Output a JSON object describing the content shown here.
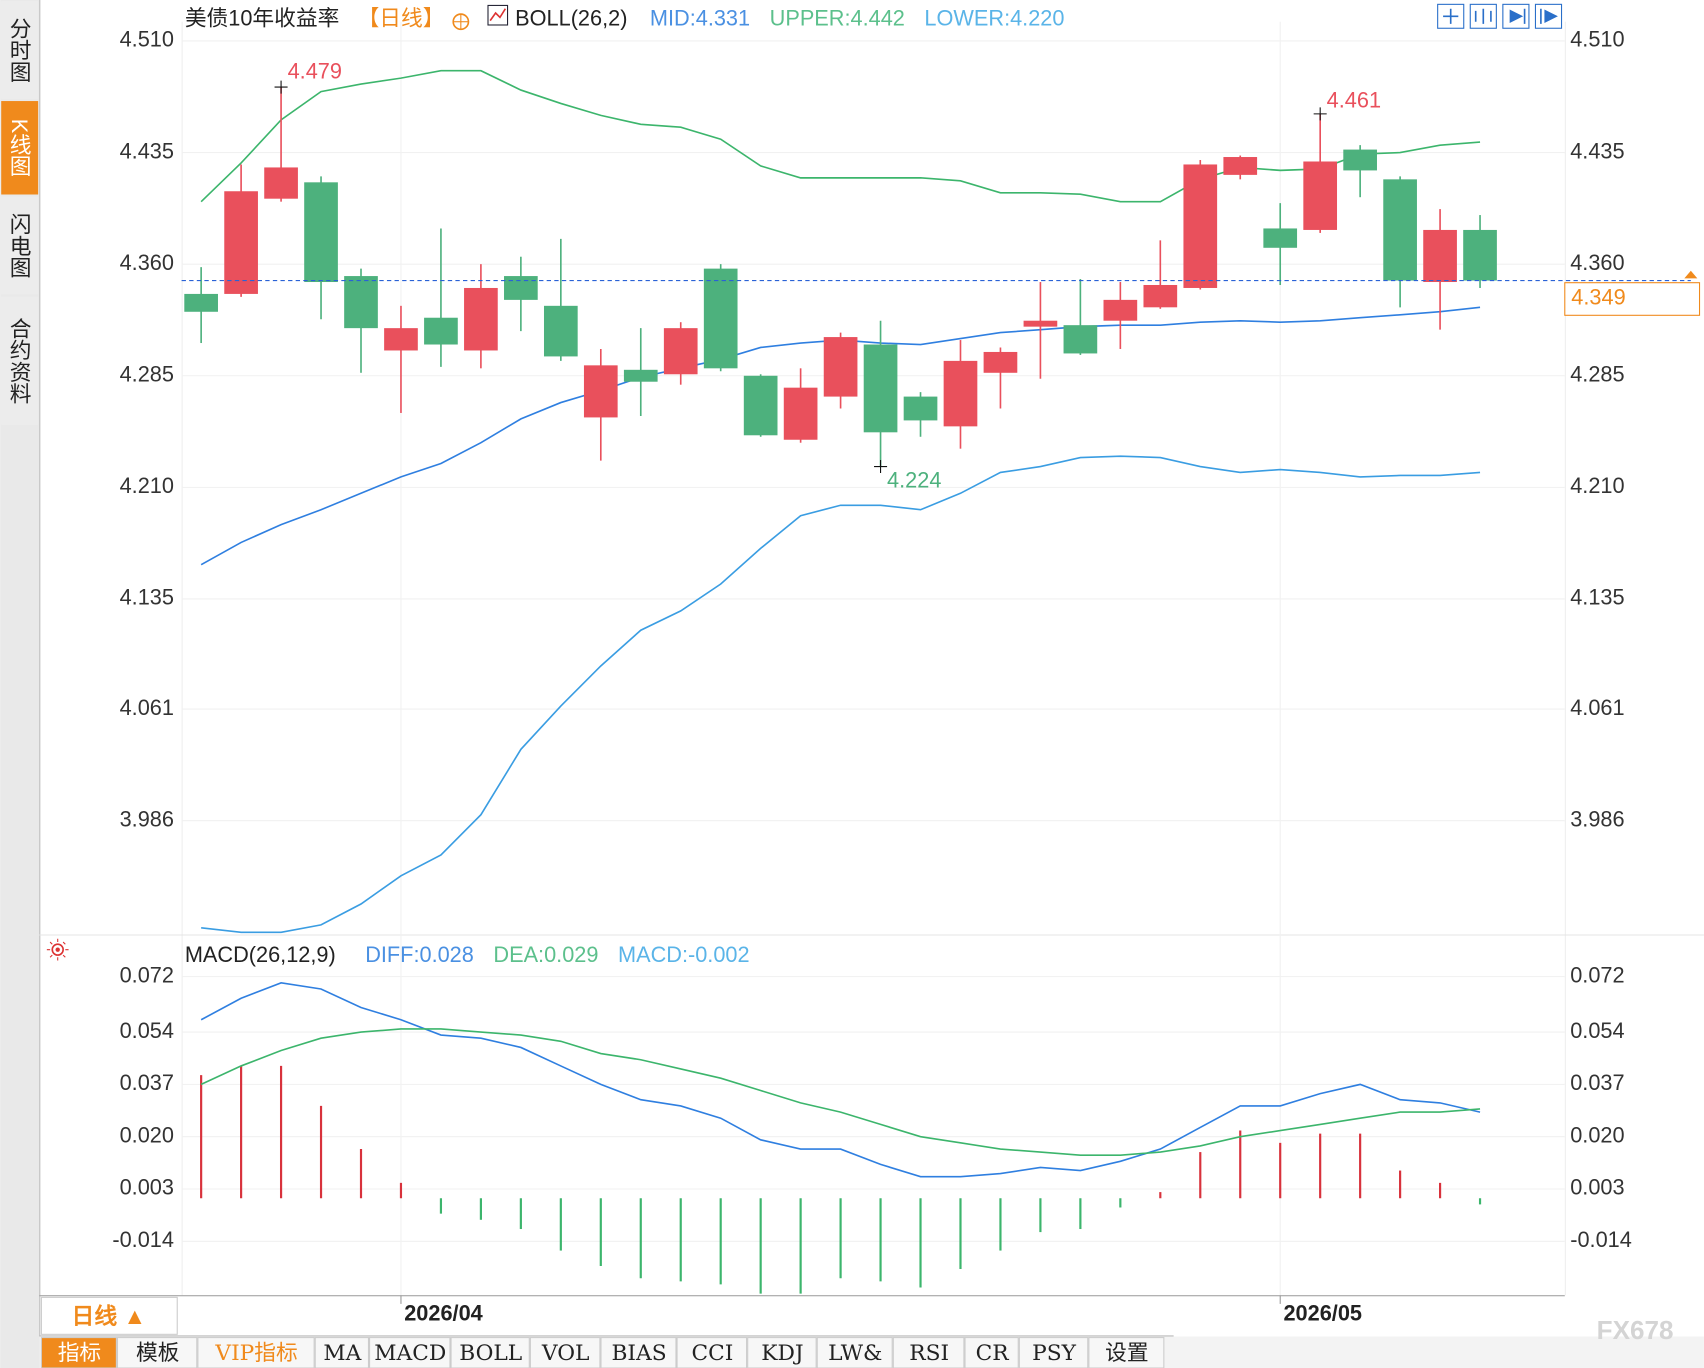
{
  "sidebar": {
    "tabs": [
      "分时图",
      "K线图",
      "闪电图",
      "合约资料"
    ],
    "active": 1
  },
  "chart_data": [
    {
      "type": "candlestick",
      "title": "美债10年收益率",
      "period": "【日线】",
      "indicator": "BOLL(26,2)",
      "categories": [
        null,
        null,
        null,
        null,
        null,
        "2026/04",
        null,
        null,
        null,
        null,
        null,
        null,
        null,
        null,
        null,
        null,
        null,
        null,
        null,
        null,
        null,
        null,
        null,
        null,
        null,
        null,
        null,
        "2026/05",
        null,
        null,
        null,
        null,
        null
      ],
      "open": [
        4.34,
        4.34,
        4.404,
        4.415,
        4.352,
        4.302,
        4.324,
        4.302,
        4.352,
        4.332,
        4.257,
        4.289,
        4.286,
        4.357,
        4.285,
        4.242,
        4.271,
        4.306,
        4.271,
        4.251,
        4.287,
        4.318,
        4.319,
        4.322,
        4.331,
        4.344,
        4.42,
        4.384,
        4.383,
        4.437,
        4.417,
        4.348,
        4.383
      ],
      "high": [
        4.358,
        4.427,
        4.479,
        4.419,
        4.357,
        4.332,
        4.384,
        4.36,
        4.365,
        4.377,
        4.303,
        4.317,
        4.321,
        4.36,
        4.286,
        4.29,
        4.314,
        4.322,
        4.274,
        4.309,
        4.304,
        4.348,
        4.35,
        4.348,
        4.376,
        4.43,
        4.433,
        4.401,
        4.461,
        4.44,
        4.419,
        4.397,
        4.393
      ],
      "low": [
        4.307,
        4.338,
        4.402,
        4.323,
        4.287,
        4.26,
        4.291,
        4.29,
        4.315,
        4.295,
        4.228,
        4.258,
        4.279,
        4.288,
        4.244,
        4.24,
        4.263,
        4.224,
        4.244,
        4.236,
        4.263,
        4.283,
        4.299,
        4.303,
        4.33,
        4.343,
        4.417,
        4.346,
        4.381,
        4.405,
        4.331,
        4.316,
        4.344
      ],
      "close": [
        4.328,
        4.409,
        4.425,
        4.348,
        4.317,
        4.317,
        4.306,
        4.344,
        4.336,
        4.298,
        4.292,
        4.281,
        4.317,
        4.29,
        4.245,
        4.277,
        4.311,
        4.247,
        4.255,
        4.295,
        4.301,
        4.322,
        4.3,
        4.336,
        4.346,
        4.427,
        4.432,
        4.371,
        4.429,
        4.423,
        4.349,
        4.383,
        4.349
      ],
      "up_color": "#e9505c",
      "down_color": "#4db17d",
      "series": [
        {
          "name": "MID:4.331",
          "color": "#2f7fe0",
          "label_color": "#4a90e2",
          "values": [
            4.158,
            4.173,
            4.185,
            4.195,
            4.206,
            4.217,
            4.226,
            4.24,
            4.256,
            4.267,
            4.275,
            4.284,
            4.29,
            4.296,
            4.304,
            4.307,
            4.309,
            4.307,
            4.306,
            4.31,
            4.314,
            4.316,
            4.318,
            4.319,
            4.319,
            4.321,
            4.322,
            4.321,
            4.322,
            4.324,
            4.326,
            4.328,
            4.331
          ]
        },
        {
          "name": "UPPER:4.442",
          "color": "#3cb56c",
          "label_color": "#5cc08c",
          "values": [
            4.402,
            4.428,
            4.457,
            4.476,
            4.481,
            4.485,
            4.49,
            4.49,
            4.477,
            4.468,
            4.46,
            4.454,
            4.452,
            4.444,
            4.426,
            4.418,
            4.418,
            4.418,
            4.418,
            4.416,
            4.408,
            4.408,
            4.407,
            4.402,
            4.402,
            4.417,
            4.425,
            4.423,
            4.424,
            4.434,
            4.435,
            4.44,
            4.442
          ]
        },
        {
          "name": "LOWER:4.220",
          "color": "#3a9de2",
          "label_color": "#5ab4e8",
          "values": [
            3.914,
            3.911,
            3.911,
            3.916,
            3.93,
            3.949,
            3.963,
            3.99,
            4.034,
            4.063,
            4.09,
            4.114,
            4.127,
            4.145,
            4.169,
            4.191,
            4.198,
            4.198,
            4.195,
            4.206,
            4.22,
            4.224,
            4.23,
            4.231,
            4.23,
            4.224,
            4.22,
            4.222,
            4.22,
            4.217,
            4.218,
            4.218,
            4.22
          ]
        }
      ],
      "ylim": [
        3.911,
        4.52
      ],
      "yticks": [
        {
          "value": 4.51,
          "label": "4.510"
        },
        4.435,
        {
          "value": 4.36,
          "label": "4.360"
        },
        4.285,
        {
          "value": 4.21,
          "label": "4.210"
        },
        4.135,
        4.061,
        3.986
      ],
      "grid": true
    },
    {
      "type": "macd",
      "title": "MACD(26,12,9)",
      "series": [
        {
          "name": "DIFF:0.028",
          "color": "#2f7fe0",
          "label_color": "#4a90e2",
          "values": [
            0.058,
            0.065,
            0.07,
            0.068,
            0.062,
            0.058,
            0.053,
            0.052,
            0.049,
            0.043,
            0.037,
            0.032,
            0.03,
            0.026,
            0.019,
            0.016,
            0.016,
            0.011,
            0.007,
            0.007,
            0.008,
            0.01,
            0.009,
            0.012,
            0.016,
            0.023,
            0.03,
            0.03,
            0.034,
            0.037,
            0.032,
            0.031,
            0.028
          ]
        },
        {
          "name": "DEA:0.029",
          "color": "#3cb56c",
          "label_color": "#5cc08c",
          "values": [
            0.037,
            0.043,
            0.048,
            0.052,
            0.054,
            0.055,
            0.055,
            0.054,
            0.053,
            0.051,
            0.047,
            0.045,
            0.042,
            0.039,
            0.035,
            0.031,
            0.028,
            0.024,
            0.02,
            0.018,
            0.016,
            0.015,
            0.014,
            0.014,
            0.015,
            0.017,
            0.02,
            0.022,
            0.024,
            0.026,
            0.028,
            0.028,
            0.029
          ]
        },
        {
          "name": "MACD:-0.002",
          "color": "#d8323c",
          "down_color": "#3cb56c",
          "label_color": "#5ab4e8",
          "values": [
            0.04,
            0.043,
            0.043,
            0.03,
            0.016,
            0.005,
            -0.005,
            -0.007,
            -0.01,
            -0.017,
            -0.022,
            -0.026,
            -0.027,
            -0.028,
            -0.031,
            -0.031,
            -0.026,
            -0.027,
            -0.029,
            -0.023,
            -0.017,
            -0.011,
            -0.01,
            -0.003,
            0.002,
            0.015,
            0.022,
            0.018,
            0.021,
            0.021,
            0.009,
            0.005,
            -0.002
          ]
        }
      ],
      "ylim": [
        -0.0315,
        0.085
      ],
      "yticks": [
        0.072,
        0.054,
        0.037,
        {
          "value": 0.02,
          "label": "0.020"
        },
        0.003,
        -0.014
      ],
      "grid": true
    }
  ],
  "period_button": "日线 ▲",
  "bottom_bar": {
    "tabs": [
      "指标",
      "模板",
      "VIP指标",
      "MA",
      "MACD",
      "BOLL",
      "VOL",
      "BIAS",
      "CCI",
      "KDJ",
      "LW&",
      "RSI",
      "CR",
      "PSY",
      "设置"
    ],
    "active": 0,
    "highlight": 2
  },
  "watermark": "FX678"
}
